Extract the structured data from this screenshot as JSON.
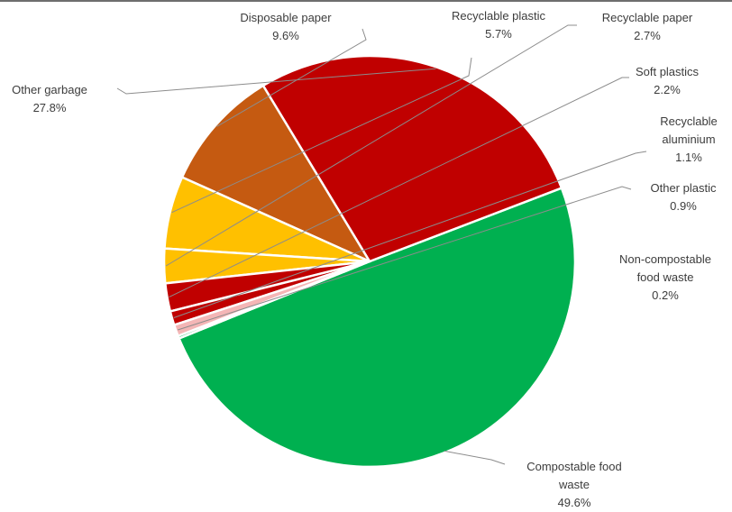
{
  "chart_data": {
    "type": "pie",
    "title": "",
    "slices": [
      {
        "label": "Compostable food waste",
        "pct_text": "49.6%",
        "value": 49.6,
        "color": "#00b050"
      },
      {
        "label": "Other garbage",
        "pct_text": "27.8%",
        "value": 27.8,
        "color": "#c00000"
      },
      {
        "label": "Disposable paper",
        "pct_text": "9.6%",
        "value": 9.6,
        "color": "#c55a11"
      },
      {
        "label": "Recyclable plastic",
        "pct_text": "5.7%",
        "value": 5.7,
        "color": "#ffc000"
      },
      {
        "label": "Recyclable paper",
        "pct_text": "2.7%",
        "value": 2.7,
        "color": "#ffc000"
      },
      {
        "label": "Soft plastics",
        "pct_text": "2.2%",
        "value": 2.2,
        "color": "#c00000"
      },
      {
        "label": "Recyclable aluminium",
        "pct_text": "1.1%",
        "value": 1.1,
        "color": "#c00000"
      },
      {
        "label": "Other plastic",
        "pct_text": "0.9%",
        "value": 0.9,
        "color": "#f4b6b6"
      },
      {
        "label": "Non-compostable food waste",
        "pct_text": "0.2%",
        "value": 0.2,
        "color": "#00b050"
      }
    ]
  }
}
